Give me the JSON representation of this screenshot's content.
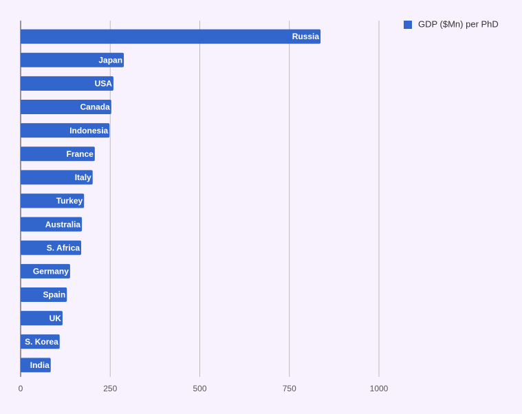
{
  "chart_data": {
    "type": "bar",
    "orientation": "horizontal",
    "categories": [
      "Russia",
      "Japan",
      "USA",
      "Canada",
      "Indonesia",
      "France",
      "Italy",
      "Turkey",
      "Australia",
      "S. Africa",
      "Germany",
      "Spain",
      "UK",
      "S. Korea",
      "India"
    ],
    "series": [
      {
        "name": "GDP ($Mn) per PhD",
        "color": "#3366cc",
        "values": [
          837,
          288,
          259,
          253,
          248,
          207,
          201,
          177,
          171,
          169,
          138,
          129,
          117,
          109,
          84
        ]
      }
    ],
    "xlim": [
      0,
      1000
    ],
    "xticks": [
      0,
      250,
      500,
      750,
      1000
    ],
    "grid": true,
    "legend": "top-right"
  }
}
